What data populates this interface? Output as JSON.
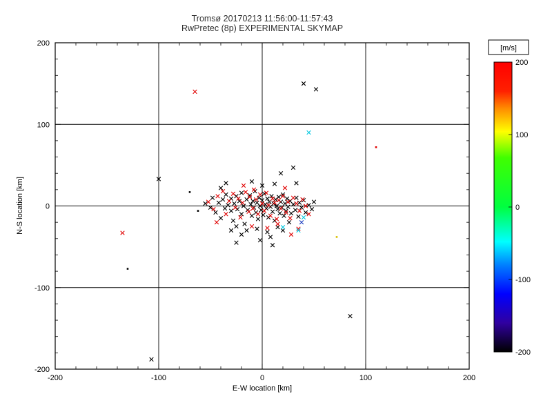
{
  "title": {
    "line1": "Tromsø 20170213 11:56:00-11:57:43",
    "line2": "RwPretec (8p) EXPERIMENTAL SKYMAP"
  },
  "chart_data": {
    "type": "scatter",
    "title": "Tromsø 20170213 11:56:00-11:57:43",
    "subtitle": "RwPretec (8p) EXPERIMENTAL SKYMAP",
    "xlabel": "E-W location [km]",
    "ylabel": "N-S location [km]",
    "xlim": [
      -200,
      200
    ],
    "ylim": [
      -200,
      200
    ],
    "xticks": [
      -200,
      -100,
      0,
      100,
      200
    ],
    "yticks": [
      -200,
      -100,
      0,
      100,
      200
    ],
    "grid": true,
    "background": "#ffffff",
    "colorbar": {
      "label": "[m/s]",
      "min": -200,
      "max": 200,
      "ticks": [
        200,
        100,
        0,
        -100,
        -200
      ],
      "stops": [
        {
          "pos": 0,
          "color": "#ff0000"
        },
        {
          "pos": 10,
          "color": "#ff2000"
        },
        {
          "pos": 16,
          "color": "#ff8c00"
        },
        {
          "pos": 24,
          "color": "#ffff00"
        },
        {
          "pos": 33,
          "color": "#40ff00"
        },
        {
          "pos": 50,
          "color": "#00ff40"
        },
        {
          "pos": 62,
          "color": "#00ffff"
        },
        {
          "pos": 70,
          "color": "#0080ff"
        },
        {
          "pos": 80,
          "color": "#0000ff"
        },
        {
          "pos": 90,
          "color": "#3000a0"
        },
        {
          "pos": 100,
          "color": "#000000"
        }
      ]
    },
    "series": [
      {
        "name": "echoes-black",
        "color": "#000000",
        "marker": "x",
        "points": [
          [
            -55,
            3
          ],
          [
            -50,
            -2
          ],
          [
            -48,
            10
          ],
          [
            -45,
            -8
          ],
          [
            -42,
            4
          ],
          [
            -40,
            -15
          ],
          [
            -38,
            8
          ],
          [
            -36,
            -3
          ],
          [
            -35,
            14
          ],
          [
            -33,
            1
          ],
          [
            -30,
            -6
          ],
          [
            -30,
            9
          ],
          [
            -28,
            -18
          ],
          [
            -27,
            3
          ],
          [
            -25,
            12
          ],
          [
            -24,
            -4
          ],
          [
            -22,
            6
          ],
          [
            -20,
            -10
          ],
          [
            -20,
            16
          ],
          [
            -18,
            0
          ],
          [
            -17,
            -22
          ],
          [
            -15,
            8
          ],
          [
            -14,
            -5
          ],
          [
            -12,
            13
          ],
          [
            -11,
            2
          ],
          [
            -10,
            -12
          ],
          [
            -9,
            6
          ],
          [
            -8,
            -2
          ],
          [
            -7,
            18
          ],
          [
            -6,
            -8
          ],
          [
            -5,
            4
          ],
          [
            -4,
            -16
          ],
          [
            -3,
            10
          ],
          [
            -2,
            0
          ],
          [
            -1,
            -5
          ],
          [
            0,
            7
          ],
          [
            1,
            -11
          ],
          [
            2,
            15
          ],
          [
            3,
            2
          ],
          [
            4,
            -3
          ],
          [
            5,
            9
          ],
          [
            6,
            -14
          ],
          [
            7,
            5
          ],
          [
            8,
            -1
          ],
          [
            9,
            12
          ],
          [
            10,
            -7
          ],
          [
            11,
            3
          ],
          [
            12,
            -18
          ],
          [
            13,
            8
          ],
          [
            14,
            0
          ],
          [
            15,
            -4
          ],
          [
            16,
            11
          ],
          [
            17,
            -9
          ],
          [
            18,
            5
          ],
          [
            19,
            -2
          ],
          [
            20,
            14
          ],
          [
            21,
            -12
          ],
          [
            22,
            3
          ],
          [
            23,
            -6
          ],
          [
            24,
            9
          ],
          [
            25,
            -1
          ],
          [
            26,
            -20
          ],
          [
            27,
            6
          ],
          [
            28,
            -9
          ],
          [
            30,
            2
          ],
          [
            32,
            -5
          ],
          [
            33,
            10
          ],
          [
            35,
            -13
          ],
          [
            36,
            4
          ],
          [
            38,
            -2
          ],
          [
            40,
            7
          ],
          [
            42,
            -8
          ],
          [
            45,
            1
          ],
          [
            48,
            -4
          ],
          [
            50,
            5
          ],
          [
            -15,
            -30
          ],
          [
            -5,
            -28
          ],
          [
            5,
            -32
          ],
          [
            15,
            -26
          ],
          [
            -25,
            -25
          ],
          [
            -35,
            28
          ],
          [
            -10,
            30
          ],
          [
            0,
            25
          ],
          [
            12,
            27
          ],
          [
            -20,
            -35
          ],
          [
            8,
            -38
          ],
          [
            -2,
            -42
          ],
          [
            20,
            -30
          ],
          [
            -30,
            -30
          ],
          [
            -40,
            22
          ],
          [
            30,
            47
          ],
          [
            33,
            28
          ],
          [
            18,
            40
          ],
          [
            40,
            150
          ],
          [
            52,
            143
          ],
          [
            -100,
            33
          ],
          [
            -107,
            -188
          ],
          [
            85,
            -135
          ],
          [
            -25,
            -45
          ],
          [
            10,
            -48
          ]
        ]
      },
      {
        "name": "echoes-black-dots",
        "color": "#000000",
        "marker": "dot",
        "points": [
          [
            -130,
            -77
          ],
          [
            -70,
            17
          ],
          [
            -62,
            -6
          ]
        ]
      },
      {
        "name": "echoes-red",
        "color": "#e00000",
        "marker": "x",
        "points": [
          [
            -52,
            5
          ],
          [
            -47,
            -4
          ],
          [
            -43,
            12
          ],
          [
            -38,
            18
          ],
          [
            -35,
            -10
          ],
          [
            -32,
            6
          ],
          [
            -28,
            15
          ],
          [
            -26,
            -2
          ],
          [
            -23,
            9
          ],
          [
            -21,
            -14
          ],
          [
            -19,
            4
          ],
          [
            -16,
            17
          ],
          [
            -13,
            -7
          ],
          [
            -12,
            11
          ],
          [
            -9,
            -3
          ],
          [
            -8,
            20
          ],
          [
            -6,
            8
          ],
          [
            -4,
            -10
          ],
          [
            -2,
            14
          ],
          [
            0,
            3
          ],
          [
            2,
            -6
          ],
          [
            4,
            16
          ],
          [
            6,
            1
          ],
          [
            8,
            -12
          ],
          [
            10,
            9
          ],
          [
            12,
            4
          ],
          [
            14,
            -16
          ],
          [
            16,
            7
          ],
          [
            18,
            -3
          ],
          [
            20,
            12
          ],
          [
            23,
            -8
          ],
          [
            25,
            5
          ],
          [
            27,
            -15
          ],
          [
            30,
            10
          ],
          [
            33,
            3
          ],
          [
            36,
            -6
          ],
          [
            39,
            8
          ],
          [
            -10,
            -25
          ],
          [
            5,
            -27
          ],
          [
            15,
            -22
          ],
          [
            -18,
            25
          ],
          [
            22,
            22
          ],
          [
            42,
            0
          ],
          [
            45,
            -10
          ],
          [
            -44,
            -20
          ],
          [
            28,
            -35
          ],
          [
            35,
            -28
          ],
          [
            -65,
            140
          ],
          [
            -135,
            -33
          ]
        ]
      },
      {
        "name": "echoes-red-dots",
        "color": "#e00000",
        "marker": "dot",
        "points": [
          [
            110,
            72
          ]
        ]
      },
      {
        "name": "echoes-cyan",
        "color": "#00c8e0",
        "marker": "x",
        "points": [
          [
            45,
            90
          ],
          [
            35,
            -30
          ],
          [
            20,
            -26
          ],
          [
            40,
            -14
          ]
        ]
      },
      {
        "name": "echoes-yellow-dots",
        "color": "#d8c000",
        "marker": "dot",
        "points": [
          [
            72,
            -38
          ]
        ]
      },
      {
        "name": "echoes-blue",
        "color": "#2040c0",
        "marker": "x",
        "points": [
          [
            38,
            -20
          ]
        ]
      }
    ]
  }
}
